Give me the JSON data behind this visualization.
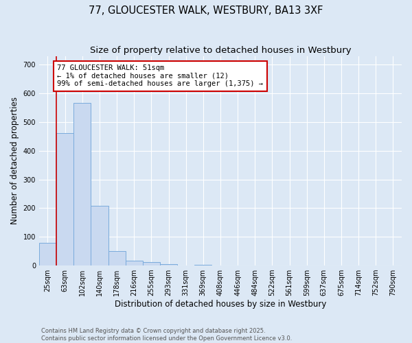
{
  "title": "77, GLOUCESTER WALK, WESTBURY, BA13 3XF",
  "subtitle": "Size of property relative to detached houses in Westbury",
  "xlabel": "Distribution of detached houses by size in Westbury",
  "ylabel": "Number of detached properties",
  "categories": [
    "25sqm",
    "63sqm",
    "102sqm",
    "140sqm",
    "178sqm",
    "216sqm",
    "255sqm",
    "293sqm",
    "331sqm",
    "369sqm",
    "408sqm",
    "446sqm",
    "484sqm",
    "522sqm",
    "561sqm",
    "599sqm",
    "637sqm",
    "675sqm",
    "714sqm",
    "752sqm",
    "790sqm"
  ],
  "values": [
    78,
    462,
    566,
    207,
    50,
    18,
    12,
    5,
    0,
    3,
    0,
    0,
    0,
    0,
    0,
    0,
    0,
    0,
    0,
    0,
    0
  ],
  "bar_color": "#c9d9f0",
  "bar_edge_color": "#7aabdc",
  "property_line_x": 0.5,
  "annotation_text": "77 GLOUCESTER WALK: 51sqm\n← 1% of detached houses are smaller (12)\n99% of semi-detached houses are larger (1,375) →",
  "annotation_box_color": "#ffffff",
  "annotation_box_edge": "#cc0000",
  "red_line_color": "#cc0000",
  "footer_line1": "Contains HM Land Registry data © Crown copyright and database right 2025.",
  "footer_line2": "Contains public sector information licensed under the Open Government Licence v3.0.",
  "bg_color": "#dce8f5",
  "plot_bg_color": "#dce8f5",
  "grid_color": "#ffffff",
  "ylim": [
    0,
    730
  ],
  "title_fontsize": 10.5,
  "subtitle_fontsize": 9.5,
  "tick_fontsize": 7,
  "ylabel_fontsize": 8.5,
  "xlabel_fontsize": 8.5,
  "annotation_fontsize": 7.5
}
